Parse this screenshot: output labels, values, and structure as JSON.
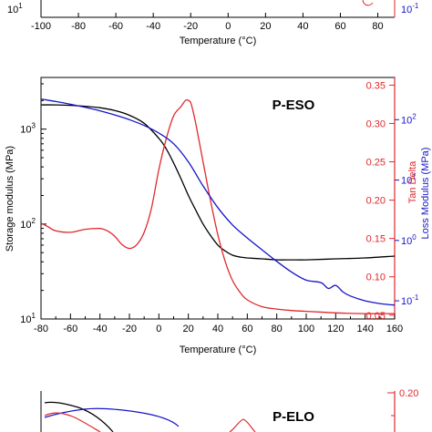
{
  "panel_top": {
    "xlabel": "Temperature (°C)",
    "x_ticks": [
      "-100",
      "-80",
      "-60",
      "-40",
      "-20",
      "0",
      "20",
      "40",
      "60",
      "80"
    ],
    "left_tick": "10",
    "left_tick_exp": "1",
    "right_tick": "10",
    "right_tick_exp": "-1"
  },
  "panel_mid": {
    "title": "P-ESO",
    "ylabel_left": "Storage modulus (MPa)",
    "ylabel_tan": "Tan Delta",
    "ylabel_loss": "Loss Modulus (MPa)",
    "xlabel": "Temperature (°C)",
    "x_ticks": [
      "-80",
      "-60",
      "-40",
      "-20",
      "0",
      "20",
      "40",
      "60",
      "80",
      "100",
      "120",
      "140",
      "160"
    ],
    "left_ticks": [
      {
        "b": "10",
        "e": "3"
      },
      {
        "b": "10",
        "e": "2"
      },
      {
        "b": "10",
        "e": "1"
      }
    ],
    "tan_ticks": [
      "0.35",
      "0.30",
      "0.25",
      "0.20",
      "0.15",
      "0.10",
      "0.05"
    ],
    "loss_ticks": [
      {
        "b": "10",
        "e": "2"
      },
      {
        "b": "10",
        "e": "1"
      },
      {
        "b": "10",
        "e": "0"
      },
      {
        "b": "10",
        "e": "-1"
      }
    ]
  },
  "panel_bottom": {
    "title": "P-ELO",
    "tan_tick": "0.20"
  },
  "colors": {
    "storage": "#000000",
    "tan_delta": "#e0282c",
    "loss": "#1515c8"
  },
  "chart_data": [
    {
      "type": "line",
      "title": "P-ESO",
      "xlabel": "Temperature (°C)",
      "xlim": [
        -80,
        160
      ],
      "ylabel": "Storage modulus (MPa)",
      "ylim": [
        10,
        3500
      ],
      "yscale": "log",
      "y2label": "Tan Delta",
      "y2lim": [
        0.045,
        0.36
      ],
      "y3label": "Loss Modulus (MPa)",
      "y3lim": [
        0.05,
        500
      ],
      "y3scale": "log",
      "grid": false,
      "series": [
        {
          "axis": "left",
          "color": "storage",
          "x": [
            -80,
            -70,
            -60,
            -50,
            -40,
            -30,
            -20,
            -10,
            0,
            5,
            10,
            15,
            20,
            25,
            30,
            35,
            40,
            45,
            50,
            55,
            60,
            70,
            80,
            90,
            100,
            120,
            140,
            160
          ],
          "y": [
            1800,
            1800,
            1780,
            1740,
            1680,
            1570,
            1400,
            1150,
            800,
            620,
            440,
            300,
            200,
            140,
            100,
            76,
            60,
            52,
            47,
            45,
            44,
            43,
            42,
            42,
            42,
            43,
            44,
            46
          ]
        },
        {
          "axis": "right_tan",
          "color": "tan_delta",
          "x": [
            -80,
            -75,
            -70,
            -60,
            -50,
            -40,
            -35,
            -30,
            -25,
            -20,
            -15,
            -10,
            -5,
            0,
            5,
            10,
            15,
            18,
            20,
            22,
            25,
            30,
            35,
            40,
            45,
            50,
            55,
            60,
            70,
            80,
            90,
            100,
            120,
            140,
            160
          ],
          "y": [
            0.17,
            0.165,
            0.16,
            0.158,
            0.162,
            0.163,
            0.16,
            0.153,
            0.142,
            0.137,
            0.142,
            0.158,
            0.19,
            0.24,
            0.28,
            0.31,
            0.322,
            0.33,
            0.33,
            0.325,
            0.3,
            0.25,
            0.2,
            0.155,
            0.12,
            0.095,
            0.08,
            0.07,
            0.061,
            0.058,
            0.056,
            0.055,
            0.053,
            0.052,
            0.052
          ]
        },
        {
          "axis": "right_loss",
          "color": "loss",
          "x": [
            -80,
            -70,
            -60,
            -50,
            -40,
            -30,
            -20,
            -10,
            0,
            10,
            20,
            30,
            40,
            50,
            60,
            70,
            80,
            90,
            100,
            110,
            115,
            120,
            125,
            130,
            140,
            150,
            160
          ],
          "y": [
            220,
            200,
            180,
            160,
            140,
            120,
            100,
            80,
            60,
            40,
            20,
            8,
            3.5,
            1.8,
            1.1,
            0.7,
            0.45,
            0.3,
            0.22,
            0.2,
            0.16,
            0.18,
            0.14,
            0.12,
            0.1,
            0.09,
            0.085
          ]
        }
      ]
    }
  ]
}
